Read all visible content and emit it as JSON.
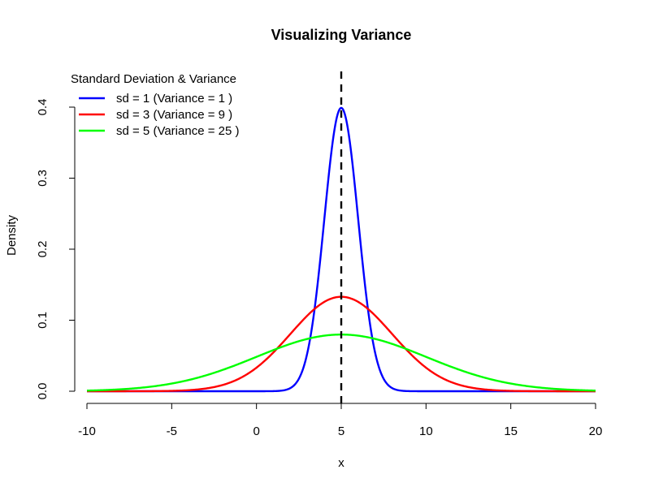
{
  "chart_data": {
    "type": "line",
    "title": "Visualizing Variance",
    "xlabel": "x",
    "ylabel": "Density",
    "xlim": [
      -10,
      20
    ],
    "ylim": [
      0,
      0.4
    ],
    "xticks": [
      -10,
      -5,
      0,
      5,
      10,
      15,
      20
    ],
    "yticks": [
      0.0,
      0.1,
      0.2,
      0.3,
      0.4
    ],
    "xtick_labels": [
      "-10",
      "-5",
      "0",
      "5",
      "10",
      "15",
      "20"
    ],
    "ytick_labels": [
      "0.0",
      "0.1",
      "0.2",
      "0.3",
      "0.4"
    ],
    "grid": false,
    "legend": {
      "title": "Standard Deviation & Variance",
      "position": "top-left"
    },
    "mean": 5,
    "series": [
      {
        "name": "sd = 1 (Variance = 1 )",
        "distribution": "normal",
        "mean": 5,
        "sd": 1,
        "color": "#0000ff"
      },
      {
        "name": "sd = 3 (Variance = 9 )",
        "distribution": "normal",
        "mean": 5,
        "sd": 3,
        "color": "#ff0000"
      },
      {
        "name": "sd = 5 (Variance = 25 )",
        "distribution": "normal",
        "mean": 5,
        "sd": 5,
        "color": "#00ff00"
      }
    ],
    "reference_line": {
      "x": 5,
      "style": "dashed",
      "color": "#000000"
    }
  }
}
